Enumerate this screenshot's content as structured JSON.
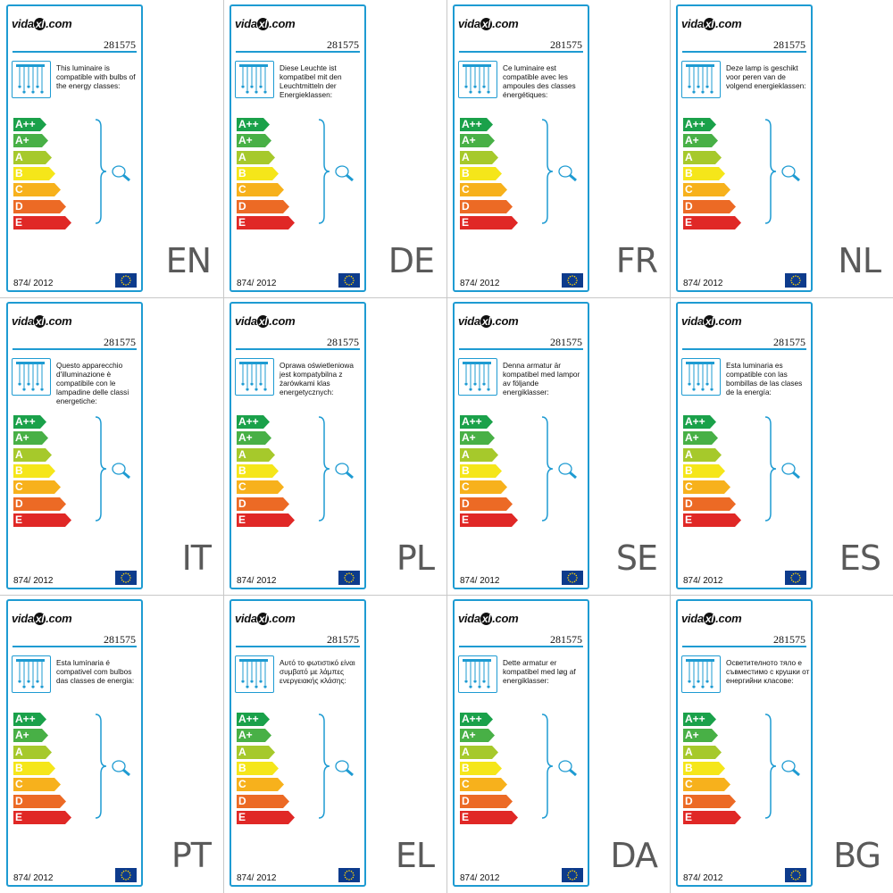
{
  "brand": "vidaxl.com",
  "brand_parts": {
    "pre": "vida",
    "mark": "xl",
    "post": ".com"
  },
  "product_code": "281575",
  "regulation": "874/ 2012",
  "classes": [
    "A++",
    "A+",
    "A",
    "B",
    "C",
    "D",
    "E"
  ],
  "class_colors": [
    "#1aa14a",
    "#48b046",
    "#a6c92b",
    "#f5e61a",
    "#f7b11c",
    "#ec6a25",
    "#e02826"
  ],
  "labels": [
    {
      "lang": "EN",
      "text": "This luminaire is compatible with bulbs of the energy classes:"
    },
    {
      "lang": "DE",
      "text": "Diese Leuchte ist kompatibel mit den Leuchtmitteln der Energieklassen:"
    },
    {
      "lang": "FR",
      "text": "Ce luminaire est compatible avec les ampoules des classes énergétiques:"
    },
    {
      "lang": "NL",
      "text": "Deze lamp is geschikt voor peren van de volgend energieklassen:"
    },
    {
      "lang": "IT",
      "text": "Questo apparecchio d'illuminazione è compatibile con le lampadine delle classi energetiche:"
    },
    {
      "lang": "PL",
      "text": "Oprawa oświetleniowa jest kompatybilna z żarówkami klas energetycznych:"
    },
    {
      "lang": "SE",
      "text": "Denna armatur är kompatibel med lampor av följande energiklasser:"
    },
    {
      "lang": "ES",
      "text": "Esta luminaria es compatible con las bombillas de las clases de la energía:"
    },
    {
      "lang": "PT",
      "text": "Esta lumínaria é compativel com bulbos das classes de energia:"
    },
    {
      "lang": "EL",
      "text": "Αυτό το φωτιστικό είναι συμβατό με λάμπες ενεργειακής κλάσης:"
    },
    {
      "lang": "DA",
      "text": "Dette armatur er kompatibel med løg af energiklasser:"
    },
    {
      "lang": "BG",
      "text": "Осветителното тяло е съвместимо с крушки от енергийни класове:"
    }
  ]
}
